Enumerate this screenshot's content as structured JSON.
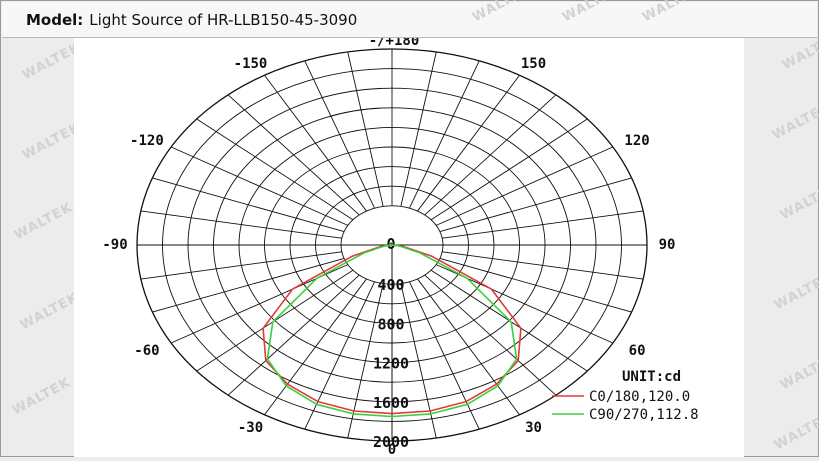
{
  "header": {
    "label": "Model:",
    "model": "Light Source of HR-LLB150-45-3090"
  },
  "watermark": "WALTEK",
  "chart_data": {
    "type": "polar",
    "unit_label": "UNIT:cd",
    "angle_labels": [
      {
        "angle": 180,
        "text": "-/+180"
      },
      {
        "angle": -150,
        "text": "-150"
      },
      {
        "angle": 150,
        "text": "150"
      },
      {
        "angle": -120,
        "text": "-120"
      },
      {
        "angle": 120,
        "text": "120"
      },
      {
        "angle": -90,
        "text": "-90"
      },
      {
        "angle": 90,
        "text": "90"
      },
      {
        "angle": -60,
        "text": "-60"
      },
      {
        "angle": 60,
        "text": "60"
      },
      {
        "angle": -30,
        "text": "-30"
      },
      {
        "angle": 30,
        "text": "30"
      },
      {
        "angle": 0,
        "text": "0"
      }
    ],
    "radial_ticks": [
      "0",
      "400",
      "800",
      "1200",
      "1600",
      "2000"
    ],
    "r_max": 2000,
    "series": [
      {
        "name": "C0/180,120.0",
        "color": "#e03a3a",
        "angles": [
          -90,
          -80,
          -70,
          -60,
          -50,
          -40,
          -30,
          -20,
          -10,
          0,
          10,
          20,
          30,
          40,
          50,
          60,
          70,
          80,
          90
        ],
        "values": [
          0,
          90,
          330,
          900,
          1320,
          1540,
          1640,
          1700,
          1720,
          1720,
          1720,
          1700,
          1640,
          1540,
          1320,
          900,
          330,
          90,
          0
        ]
      },
      {
        "name": "C90/270,112.8",
        "color": "#3ccf3c",
        "angles": [
          -90,
          -80,
          -70,
          -60,
          -50,
          -40,
          -30,
          -20,
          -10,
          0,
          10,
          20,
          30,
          40,
          50,
          60,
          70,
          80,
          90
        ],
        "values": [
          0,
          60,
          230,
          680,
          1220,
          1520,
          1660,
          1730,
          1750,
          1750,
          1750,
          1730,
          1660,
          1520,
          1220,
          680,
          230,
          60,
          0
        ]
      }
    ]
  }
}
